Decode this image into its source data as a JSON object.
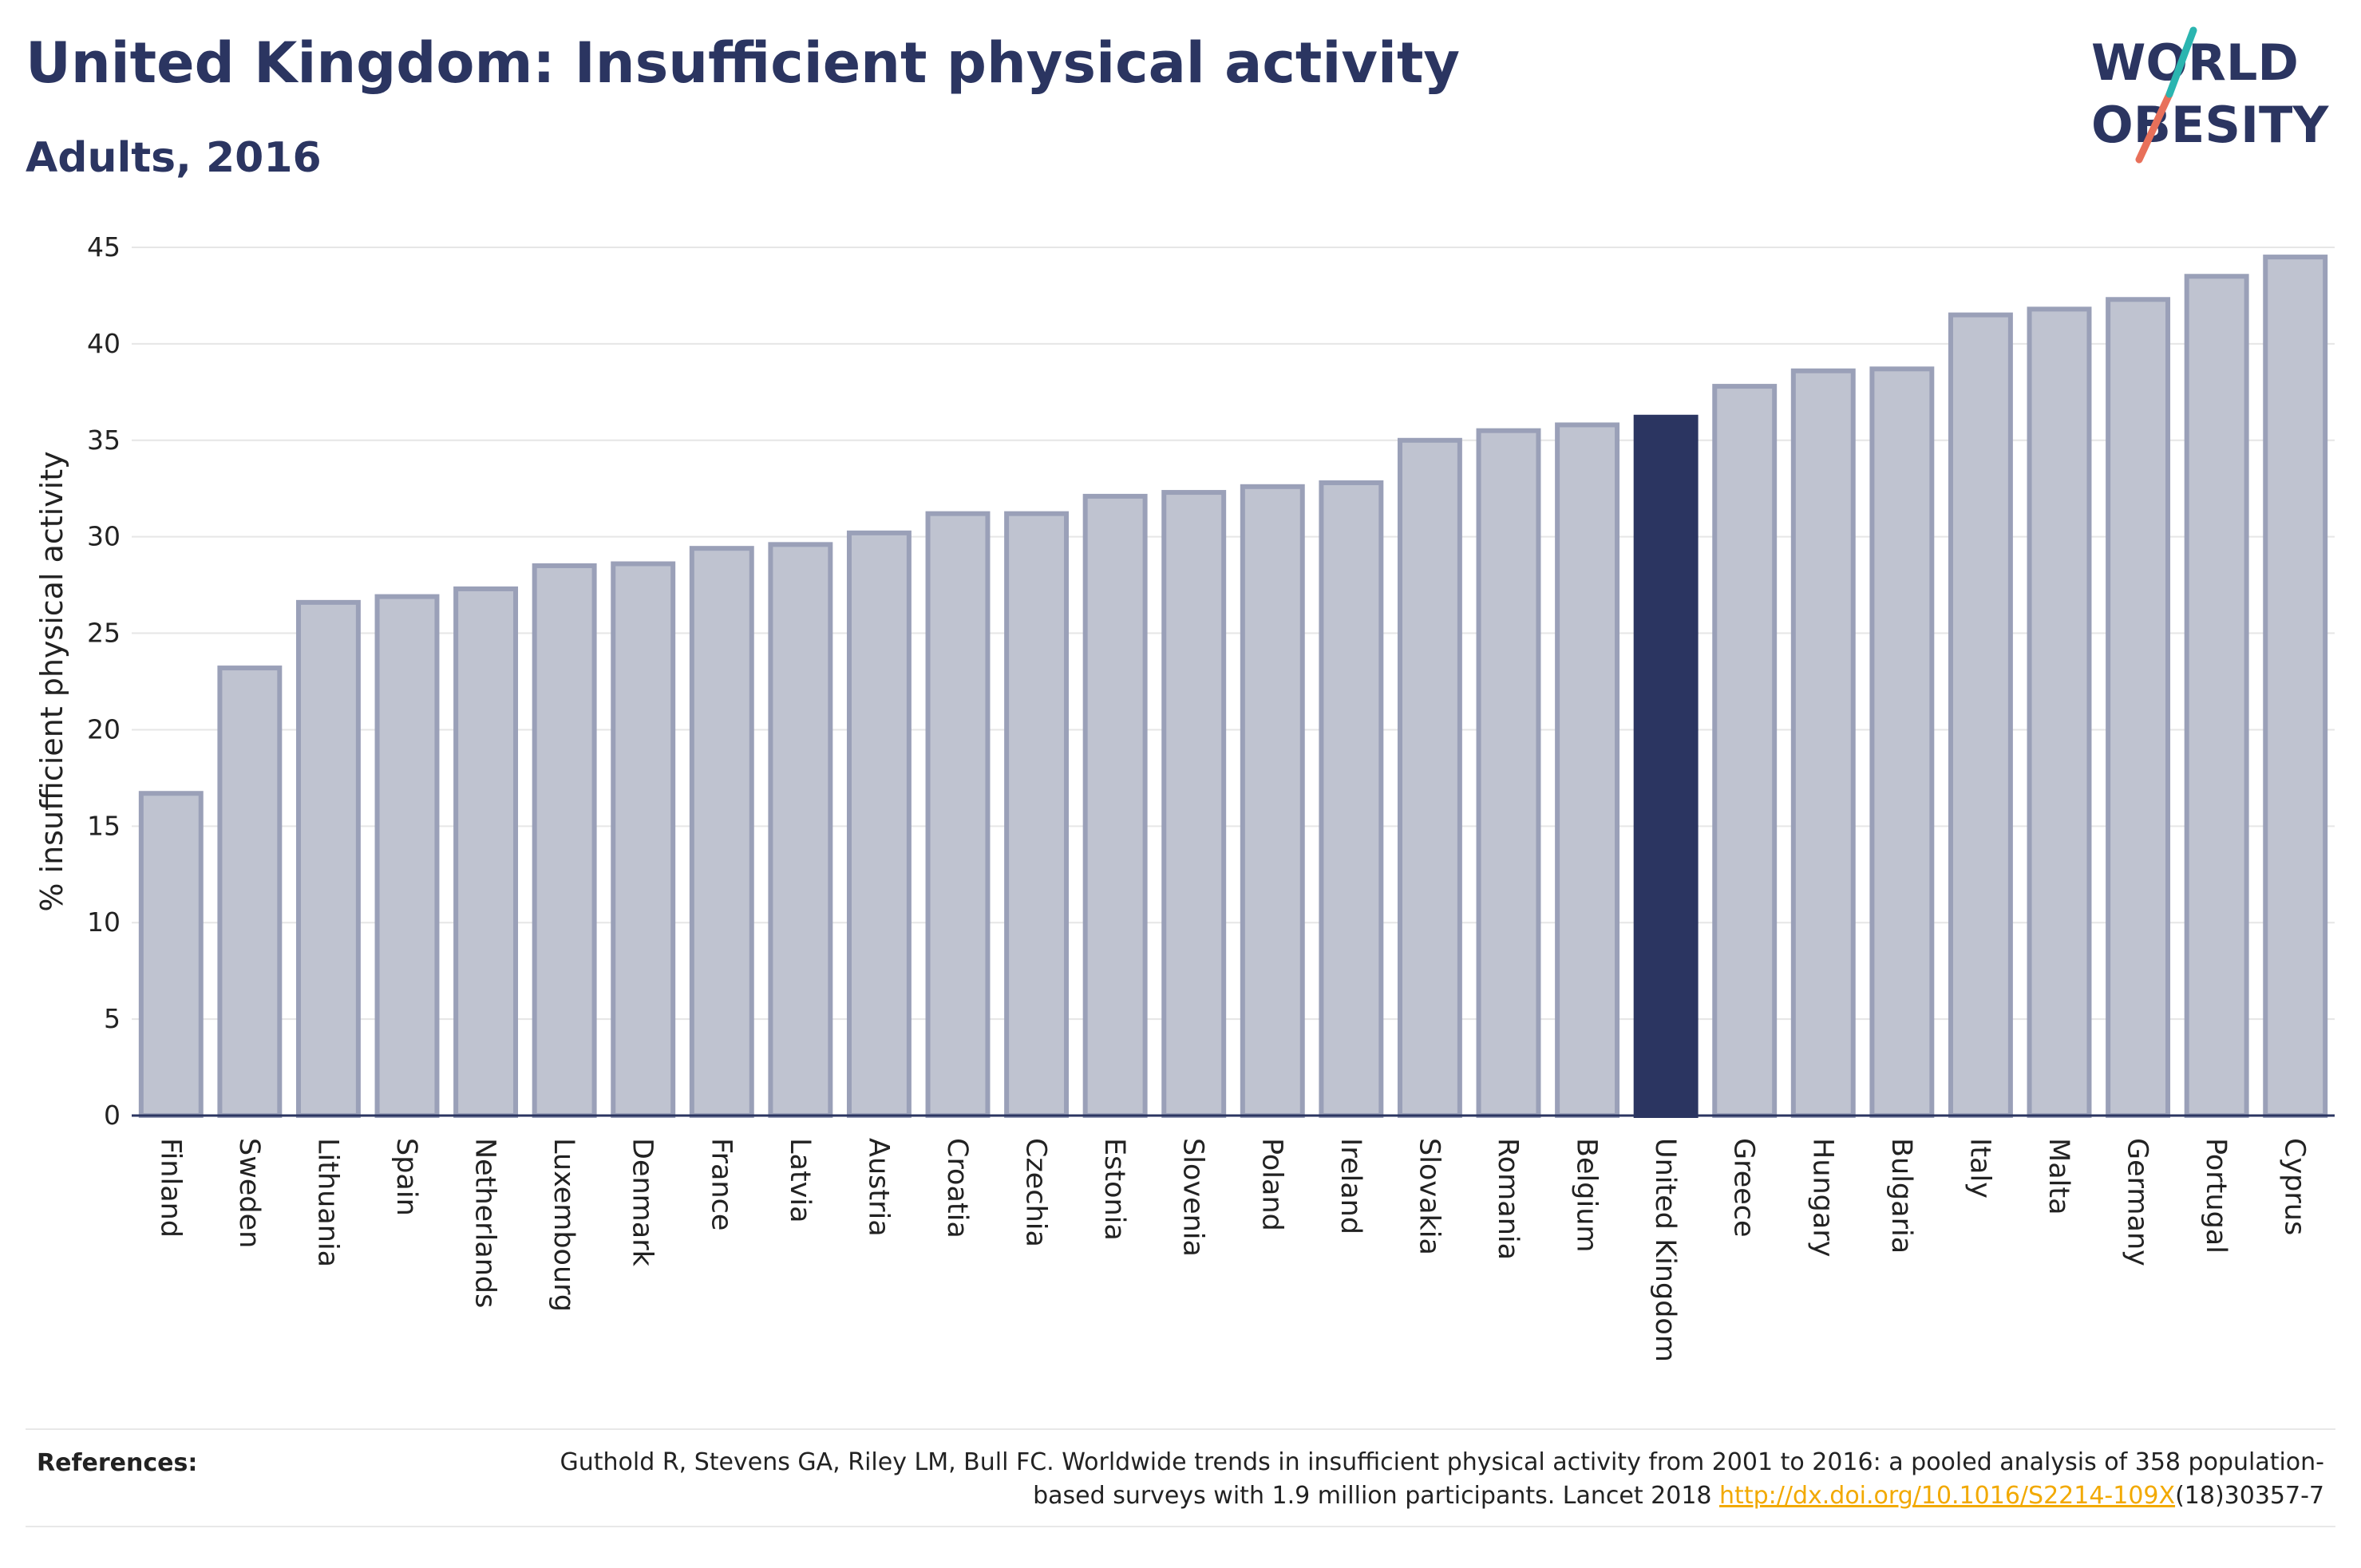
{
  "header": {
    "title": "United Kingdom: Insufficient physical activity",
    "subtitle": "Adults, 2016"
  },
  "logo": {
    "line1": "WORLD",
    "line2": "OBESITY"
  },
  "colors": {
    "bar_fill": "#bfc3d0",
    "bar_stroke": "#9aa0b8",
    "highlight": "#2b3561",
    "grid": "#e6e6e6",
    "axis": "#2b3561",
    "logo_accent_teal": "#2bb5b0",
    "logo_accent_coral": "#e8705a"
  },
  "chart_data": {
    "type": "bar",
    "ylabel": "% insufficient physical activity",
    "ylim": [
      0,
      45
    ],
    "yticks": [
      0,
      5,
      10,
      15,
      20,
      25,
      30,
      35,
      40,
      45
    ],
    "grid": true,
    "highlight": "United Kingdom",
    "categories": [
      "Finland",
      "Sweden",
      "Lithuania",
      "Spain",
      "Netherlands",
      "Luxembourg",
      "Denmark",
      "France",
      "Latvia",
      "Austria",
      "Croatia",
      "Czechia",
      "Estonia",
      "Slovenia",
      "Poland",
      "Ireland",
      "Slovakia",
      "Romania",
      "Belgium",
      "United Kingdom",
      "Greece",
      "Hungary",
      "Bulgaria",
      "Italy",
      "Malta",
      "Germany",
      "Portugal",
      "Cyprus"
    ],
    "values": [
      16.7,
      23.2,
      26.6,
      26.9,
      27.3,
      28.5,
      28.6,
      29.4,
      29.6,
      30.2,
      31.2,
      31.2,
      32.1,
      32.3,
      32.6,
      32.8,
      35.0,
      35.5,
      35.8,
      36.2,
      37.8,
      38.6,
      38.7,
      41.5,
      41.8,
      42.3,
      43.5,
      44.5
    ]
  },
  "references": {
    "label": "References:",
    "text": "Guthold R, Stevens GA, Riley LM, Bull FC. Worldwide trends in insufficient physical activity from 2001 to 2016: a pooled analysis of 358 population-based surveys with 1.9 million participants. Lancet 2018 ",
    "link_text": "http://dx.doi.org/10.1016/S2214-109X",
    "text_after": "(18)30357-7"
  }
}
